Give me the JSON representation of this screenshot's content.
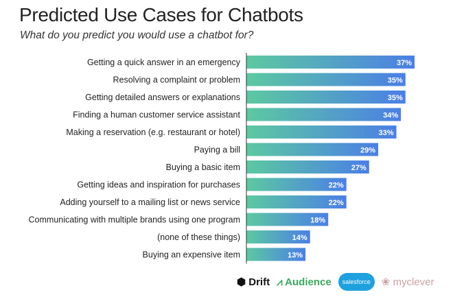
{
  "chart_data": {
    "type": "bar",
    "orientation": "horizontal",
    "title": "Predicted Use Cases for Chatbots",
    "subtitle": "What do you predict you would use a chatbot for?",
    "categories": [
      "Getting a quick answer in an emergency",
      "Resolving a complaint or problem",
      "Getting detailed answers or explanations",
      "Finding a human customer service assistant",
      "Making a reservation (e.g. restaurant or hotel)",
      "Paying a bill",
      "Buying a basic item",
      "Getting ideas and inspiration for purchases",
      "Adding yourself to a mailing list or news service",
      "Communicating with multiple brands using one program",
      "(none of these things)",
      "Buying an expensive item"
    ],
    "values": [
      37,
      35,
      35,
      34,
      33,
      29,
      27,
      22,
      22,
      18,
      14,
      13
    ],
    "value_labels": [
      "37%",
      "35%",
      "35%",
      "34%",
      "33%",
      "29%",
      "27%",
      "22%",
      "22%",
      "18%",
      "14%",
      "13%"
    ],
    "unit": "%",
    "gradient": [
      "#5cc9a0",
      "#4b7fe6"
    ],
    "grid": false
  },
  "logos": {
    "drift": "Drift",
    "audience": "Audience",
    "salesforce": "salesforce",
    "myclever": "myclever"
  }
}
